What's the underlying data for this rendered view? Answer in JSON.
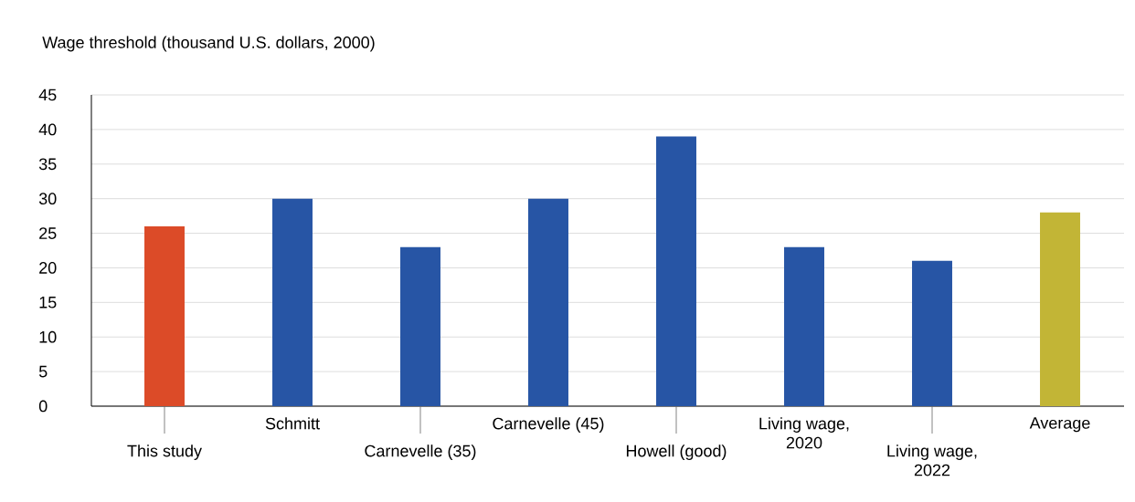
{
  "chart_data": {
    "type": "bar",
    "ylabel": "Wage threshold (thousand U.S. dollars, 2000)",
    "categories": [
      "This study",
      "Schmitt",
      "Carnevelle (35)",
      "Carnevelle (45)",
      "Howell (good)",
      "Living wage, 2020",
      "Living wage, 2022",
      "Average"
    ],
    "values": [
      26,
      30,
      23,
      30,
      39,
      23,
      21,
      28
    ],
    "colors": [
      "#dc4b28",
      "#2755a5",
      "#2755a5",
      "#2755a5",
      "#2755a5",
      "#2755a5",
      "#2755a5",
      "#c2b536"
    ],
    "ylim": [
      0,
      45
    ],
    "yticks": [
      0,
      5,
      10,
      15,
      20,
      25,
      30,
      35,
      40,
      45
    ],
    "grid": "y"
  }
}
